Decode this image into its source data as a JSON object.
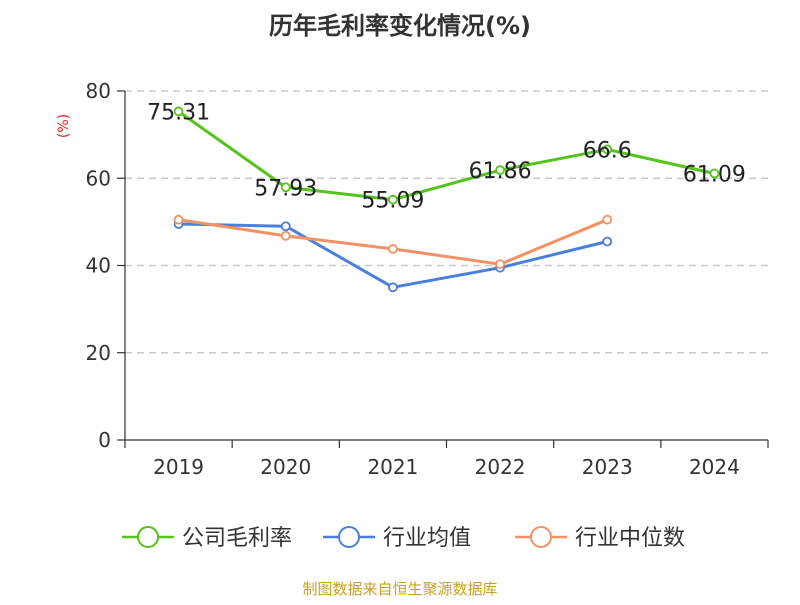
{
  "chart_data": {
    "type": "line",
    "title": "历年毛利率变化情况(%)",
    "ylabel": "(%)",
    "xlabel": "",
    "categories": [
      "2019",
      "2020",
      "2021",
      "2022",
      "2023",
      "2024"
    ],
    "ylim": [
      0,
      80
    ],
    "yticks": [
      0,
      20,
      40,
      60,
      80
    ],
    "grid": true,
    "legend_position": "bottom",
    "series": [
      {
        "name": "公司毛利率",
        "color": "#52c41a",
        "values": [
          75.31,
          57.93,
          55.09,
          61.86,
          66.6,
          61.09
        ],
        "labels": [
          "75.31",
          "57.93",
          "55.09",
          "61.86",
          "66.6",
          "61.09"
        ]
      },
      {
        "name": "行业均值",
        "color": "#4a7fdb",
        "values": [
          49.5,
          49.0,
          35.0,
          39.5,
          45.5,
          null
        ]
      },
      {
        "name": "行业中位数",
        "color": "#f59162",
        "values": [
          50.5,
          46.8,
          43.8,
          40.3,
          50.5,
          null
        ]
      }
    ]
  },
  "colors": {
    "title": "#333333",
    "ylabel": "#dd2222",
    "footer": "#c8a02a",
    "axis": "#333333",
    "grid": "#cccccc"
  },
  "footer": "制图数据来自恒生聚源数据库"
}
